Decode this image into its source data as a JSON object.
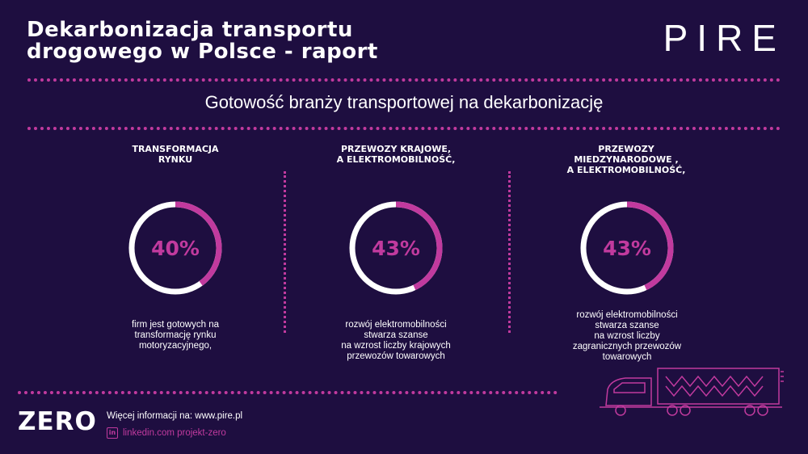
{
  "header": {
    "title_line1": "Dekarbonizacja transportu",
    "title_line2": "drogowego w Polsce - raport",
    "logo": "PIRE"
  },
  "subtitle": "Gotowość branży transportowej na dekarbonizację",
  "columns": [
    {
      "heading_lines": [
        "TRANSFORMACJA",
        "RYNKU"
      ],
      "value": 40,
      "value_label": "40%",
      "description_lines": [
        "firm jest gotowych na",
        "transformację rynku",
        "motoryzacyjnego,"
      ]
    },
    {
      "heading_lines": [
        "PRZEWOZY KRAJOWE,",
        "A ELEKTROMOBILNOŚĆ,"
      ],
      "value": 43,
      "value_label": "43%",
      "description_lines": [
        "rozwój elektromobilności",
        "stwarza szanse",
        "na wzrost liczby krajowych",
        "przewozów towarowych"
      ]
    },
    {
      "heading_lines": [
        "PRZEWOZY",
        "MIEDZYNARODOWE ,",
        "A ELEKTROMOBILNOŚĆ,"
      ],
      "value": 43,
      "value_label": "43%",
      "description_lines": [
        "rozwój elektromobilności",
        "stwarza szanse",
        "na wzrost liczby",
        "zagranicznych przewozów",
        "towarowych"
      ]
    }
  ],
  "footer": {
    "logo": "ZERO",
    "info": "Więcej informacji na: www.pire.pl",
    "linkedin_icon": "in",
    "linkedin": "linkedin.com projekt-zero"
  },
  "colors": {
    "background": "#1e0e40",
    "accent": "#c13a9e",
    "ring": "#ffffff"
  },
  "icons": {
    "truck": "electric-truck-icon",
    "linkedin": "linkedin-icon"
  }
}
